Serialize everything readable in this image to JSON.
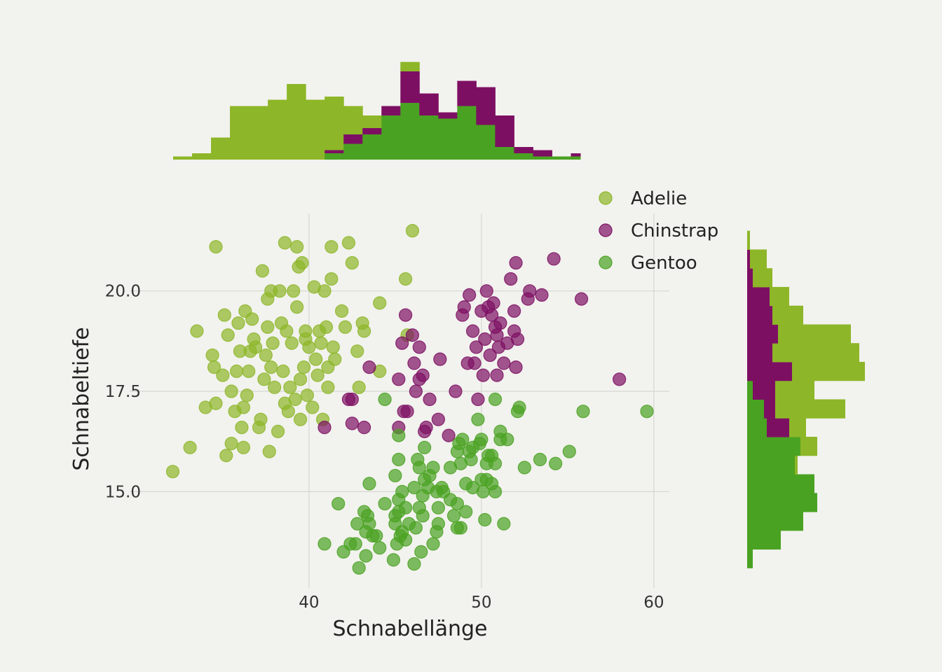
{
  "chart_data": {
    "type": "scatter",
    "xlabel": "Schnabellänge",
    "ylabel": "Schnabeltiefe",
    "xlim": [
      29.6,
      60.9
    ],
    "ylim": [
      12.6,
      21.93
    ],
    "grid": true,
    "x_ticks": [
      {
        "value": 40,
        "label": "40"
      },
      {
        "value": 50,
        "label": "50"
      },
      {
        "value": 60,
        "label": "60"
      }
    ],
    "y_ticks": [
      {
        "value": 15.0,
        "label": "15.0"
      },
      {
        "value": 17.5,
        "label": "17.5"
      },
      {
        "value": 20.0,
        "label": "20.0"
      }
    ],
    "legend": {
      "placement": "top-right",
      "entries": [
        "Adelie",
        "Chinstrap",
        "Gentoo"
      ]
    },
    "colors": {
      "Adelie": "#8db628",
      "Chinstrap": "#7d0f63",
      "Gentoo": "#4aa222"
    },
    "series": [
      {
        "name": "Adelie",
        "points": [
          [
            32.1,
            15.5
          ],
          [
            33.1,
            16.1
          ],
          [
            33.5,
            19.0
          ],
          [
            34.0,
            17.1
          ],
          [
            34.4,
            18.4
          ],
          [
            34.5,
            18.1
          ],
          [
            34.6,
            17.2
          ],
          [
            34.6,
            21.1
          ],
          [
            35.0,
            17.9
          ],
          [
            35.1,
            19.4
          ],
          [
            35.2,
            15.9
          ],
          [
            35.3,
            18.9
          ],
          [
            35.5,
            16.2
          ],
          [
            35.5,
            17.5
          ],
          [
            35.7,
            17.0
          ],
          [
            35.8,
            18.0
          ],
          [
            35.9,
            19.2
          ],
          [
            36.0,
            18.5
          ],
          [
            36.1,
            16.6
          ],
          [
            36.2,
            16.1
          ],
          [
            36.2,
            17.1
          ],
          [
            36.3,
            19.5
          ],
          [
            36.4,
            17.4
          ],
          [
            36.5,
            18.0
          ],
          [
            36.6,
            18.5
          ],
          [
            36.7,
            19.3
          ],
          [
            36.8,
            18.8
          ],
          [
            36.9,
            18.6
          ],
          [
            37.1,
            16.6
          ],
          [
            37.2,
            16.8
          ],
          [
            37.3,
            20.5
          ],
          [
            37.4,
            17.8
          ],
          [
            37.5,
            18.4
          ],
          [
            37.6,
            19.1
          ],
          [
            37.6,
            19.8
          ],
          [
            37.7,
            16.0
          ],
          [
            37.8,
            18.1
          ],
          [
            37.8,
            20.0
          ],
          [
            37.9,
            18.7
          ],
          [
            38.0,
            17.6
          ],
          [
            38.2,
            16.5
          ],
          [
            38.3,
            20.0
          ],
          [
            38.4,
            19.2
          ],
          [
            38.5,
            18.0
          ],
          [
            38.6,
            17.2
          ],
          [
            38.6,
            21.2
          ],
          [
            38.7,
            19.0
          ],
          [
            38.8,
            17.0
          ],
          [
            38.9,
            17.6
          ],
          [
            39.0,
            18.7
          ],
          [
            39.1,
            20.0
          ],
          [
            39.2,
            17.3
          ],
          [
            39.3,
            21.1
          ],
          [
            39.3,
            19.6
          ],
          [
            39.4,
            20.6
          ],
          [
            39.5,
            16.8
          ],
          [
            39.5,
            17.8
          ],
          [
            39.6,
            20.7
          ],
          [
            39.7,
            18.1
          ],
          [
            39.8,
            19.0
          ],
          [
            39.8,
            18.8
          ],
          [
            39.9,
            17.4
          ],
          [
            40.0,
            18.6
          ],
          [
            40.2,
            17.1
          ],
          [
            40.3,
            20.1
          ],
          [
            40.4,
            18.3
          ],
          [
            40.5,
            17.9
          ],
          [
            40.6,
            19.0
          ],
          [
            40.7,
            18.7
          ],
          [
            40.8,
            16.8
          ],
          [
            40.9,
            20.0
          ],
          [
            41.0,
            19.1
          ],
          [
            41.1,
            18.1
          ],
          [
            41.1,
            17.6
          ],
          [
            41.3,
            21.1
          ],
          [
            41.3,
            20.3
          ],
          [
            41.4,
            18.6
          ],
          [
            41.5,
            18.3
          ],
          [
            41.9,
            19.5
          ],
          [
            42.1,
            19.1
          ],
          [
            42.3,
            21.2
          ],
          [
            42.5,
            20.7
          ],
          [
            42.8,
            18.5
          ],
          [
            42.9,
            17.6
          ],
          [
            43.1,
            19.2
          ],
          [
            43.2,
            19.0
          ],
          [
            44.1,
            18.0
          ],
          [
            44.1,
            19.7
          ],
          [
            45.6,
            20.3
          ],
          [
            45.7,
            18.9
          ],
          [
            46.0,
            21.5
          ]
        ]
      },
      {
        "name": "Chinstrap",
        "points": [
          [
            40.9,
            16.6
          ],
          [
            42.3,
            17.3
          ],
          [
            42.5,
            17.3
          ],
          [
            42.5,
            16.7
          ],
          [
            43.2,
            16.6
          ],
          [
            43.5,
            18.1
          ],
          [
            45.2,
            16.6
          ],
          [
            45.2,
            17.8
          ],
          [
            45.4,
            18.7
          ],
          [
            45.6,
            19.4
          ],
          [
            45.5,
            17.0
          ],
          [
            45.7,
            17.0
          ],
          [
            46.0,
            18.9
          ],
          [
            46.1,
            18.2
          ],
          [
            46.2,
            17.5
          ],
          [
            46.4,
            18.6
          ],
          [
            46.4,
            17.8
          ],
          [
            46.6,
            17.9
          ],
          [
            46.7,
            16.5
          ],
          [
            46.8,
            16.6
          ],
          [
            47.0,
            17.3
          ],
          [
            47.5,
            16.8
          ],
          [
            47.6,
            18.3
          ],
          [
            48.1,
            16.4
          ],
          [
            48.5,
            17.5
          ],
          [
            48.9,
            19.4
          ],
          [
            49.0,
            19.6
          ],
          [
            49.2,
            18.2
          ],
          [
            49.3,
            19.9
          ],
          [
            49.5,
            19.0
          ],
          [
            49.6,
            18.2
          ],
          [
            49.7,
            18.6
          ],
          [
            49.8,
            17.3
          ],
          [
            50.0,
            19.5
          ],
          [
            50.1,
            17.9
          ],
          [
            50.2,
            18.8
          ],
          [
            50.3,
            20.0
          ],
          [
            50.4,
            19.6
          ],
          [
            50.5,
            18.4
          ],
          [
            50.6,
            19.4
          ],
          [
            50.7,
            19.7
          ],
          [
            50.8,
            19.1
          ],
          [
            50.9,
            18.9
          ],
          [
            50.9,
            17.9
          ],
          [
            51.0,
            18.6
          ],
          [
            51.1,
            19.2
          ],
          [
            51.3,
            18.2
          ],
          [
            51.5,
            18.7
          ],
          [
            51.7,
            20.3
          ],
          [
            51.9,
            19.0
          ],
          [
            52.0,
            20.7
          ],
          [
            52.0,
            18.1
          ],
          [
            52.1,
            18.8
          ],
          [
            51.9,
            19.5
          ],
          [
            52.7,
            19.8
          ],
          [
            52.8,
            20.0
          ],
          [
            53.5,
            19.9
          ],
          [
            54.2,
            20.8
          ],
          [
            55.8,
            19.8
          ],
          [
            58.0,
            17.8
          ]
        ]
      },
      {
        "name": "Gentoo",
        "points": [
          [
            44.4,
            17.3
          ],
          [
            45.2,
            16.4
          ],
          [
            43.5,
            15.2
          ],
          [
            45.2,
            15.8
          ],
          [
            45.0,
            15.4
          ],
          [
            44.4,
            14.7
          ],
          [
            45.4,
            15.0
          ],
          [
            45.2,
            14.8
          ],
          [
            45.2,
            14.5
          ],
          [
            45.0,
            14.4
          ],
          [
            45.6,
            14.6
          ],
          [
            45.8,
            14.2
          ],
          [
            45.3,
            13.9
          ],
          [
            45.1,
            13.7
          ],
          [
            45.6,
            13.8
          ],
          [
            44.9,
            13.3
          ],
          [
            46.1,
            13.2
          ],
          [
            46.3,
            15.8
          ],
          [
            46.4,
            15.6
          ],
          [
            46.1,
            15.1
          ],
          [
            46.6,
            14.9
          ],
          [
            46.4,
            14.6
          ],
          [
            46.6,
            14.4
          ],
          [
            46.2,
            14.1
          ],
          [
            46.5,
            13.5
          ],
          [
            46.7,
            16.1
          ],
          [
            46.7,
            15.3
          ],
          [
            47.0,
            15.4
          ],
          [
            47.2,
            15.6
          ],
          [
            47.4,
            15.0
          ],
          [
            47.5,
            14.6
          ],
          [
            47.5,
            14.2
          ],
          [
            47.2,
            13.7
          ],
          [
            47.4,
            14.0
          ],
          [
            47.8,
            15.0
          ],
          [
            48.2,
            15.6
          ],
          [
            48.2,
            14.8
          ],
          [
            48.4,
            14.4
          ],
          [
            48.6,
            14.1
          ],
          [
            48.8,
            14.1
          ],
          [
            48.6,
            16.0
          ],
          [
            48.7,
            16.2
          ],
          [
            48.8,
            15.7
          ],
          [
            48.9,
            16.3
          ],
          [
            49.1,
            15.2
          ],
          [
            49.1,
            14.5
          ],
          [
            49.3,
            16.0
          ],
          [
            49.4,
            15.8
          ],
          [
            49.5,
            16.1
          ],
          [
            49.8,
            16.8
          ],
          [
            49.9,
            16.2
          ],
          [
            50.0,
            16.3
          ],
          [
            50.0,
            15.3
          ],
          [
            50.1,
            15.0
          ],
          [
            50.2,
            14.3
          ],
          [
            50.3,
            15.7
          ],
          [
            50.4,
            15.9
          ],
          [
            50.6,
            15.9
          ],
          [
            50.6,
            15.2
          ],
          [
            50.8,
            15.0
          ],
          [
            50.8,
            15.7
          ],
          [
            50.8,
            17.3
          ],
          [
            51.1,
            16.5
          ],
          [
            51.1,
            16.3
          ],
          [
            51.3,
            14.2
          ],
          [
            51.5,
            16.3
          ],
          [
            52.1,
            17.0
          ],
          [
            52.2,
            17.1
          ],
          [
            52.5,
            15.6
          ],
          [
            53.4,
            15.8
          ],
          [
            54.3,
            15.7
          ],
          [
            55.1,
            16.0
          ],
          [
            55.9,
            17.0
          ],
          [
            59.6,
            17.0
          ],
          [
            40.9,
            13.7
          ],
          [
            41.7,
            14.7
          ],
          [
            42.0,
            13.5
          ],
          [
            42.4,
            13.7
          ],
          [
            42.7,
            13.7
          ],
          [
            42.8,
            14.2
          ],
          [
            42.9,
            13.1
          ],
          [
            43.2,
            14.5
          ],
          [
            43.3,
            13.4
          ],
          [
            43.4,
            14.4
          ],
          [
            43.5,
            14.2
          ],
          [
            43.7,
            13.9
          ],
          [
            43.9,
            13.9
          ],
          [
            44.1,
            13.6
          ],
          [
            43.3,
            14.0
          ],
          [
            45.0,
            14.2
          ],
          [
            45.4,
            14.0
          ],
          [
            46.9,
            15.1
          ],
          [
            47.7,
            15.1
          ],
          [
            48.6,
            14.7
          ],
          [
            49.5,
            15.1
          ],
          [
            50.3,
            15.3
          ]
        ]
      }
    ],
    "marginal_x_histogram": {
      "type": "bar",
      "stacked": true,
      "range": [
        32.1,
        59.6
      ],
      "bins": 22,
      "series": [
        {
          "name": "Gentoo",
          "counts": [
            0,
            0,
            0,
            0,
            0,
            0,
            0,
            0,
            2,
            5,
            8,
            14,
            18,
            14,
            13,
            17,
            11,
            4,
            2,
            1,
            1,
            1
          ]
        },
        {
          "name": "Chinstrap",
          "counts": [
            0,
            0,
            0,
            0,
            0,
            0,
            0,
            0,
            1,
            3,
            2,
            3,
            10,
            7,
            2,
            8,
            12,
            10,
            2,
            2,
            0,
            1
          ]
        },
        {
          "name": "Adelie",
          "counts": [
            1,
            2,
            7,
            17,
            17,
            19,
            24,
            19,
            17,
            9,
            4,
            0,
            3,
            0,
            0,
            0,
            0,
            0,
            0,
            0,
            0,
            0
          ]
        }
      ]
    },
    "marginal_y_histogram": {
      "type": "bar",
      "stacked": true,
      "orientation": "horizontal",
      "range": [
        13.1,
        21.5
      ],
      "bins": 18,
      "series": [
        {
          "name": "Gentoo",
          "counts": [
            2,
            12,
            20,
            25,
            24,
            17,
            19,
            7,
            6,
            2,
            0,
            0,
            0,
            0,
            0,
            0,
            0,
            0
          ]
        },
        {
          "name": "Chinstrap",
          "counts": [
            0,
            0,
            0,
            0,
            0,
            0,
            0,
            8,
            4,
            8,
            16,
            9,
            11,
            9,
            8,
            2,
            1,
            0
          ]
        },
        {
          "name": "Adelie",
          "counts": [
            0,
            0,
            0,
            0,
            0,
            1,
            6,
            6,
            25,
            14,
            26,
            31,
            26,
            11,
            7,
            7,
            6,
            1
          ]
        }
      ]
    }
  }
}
